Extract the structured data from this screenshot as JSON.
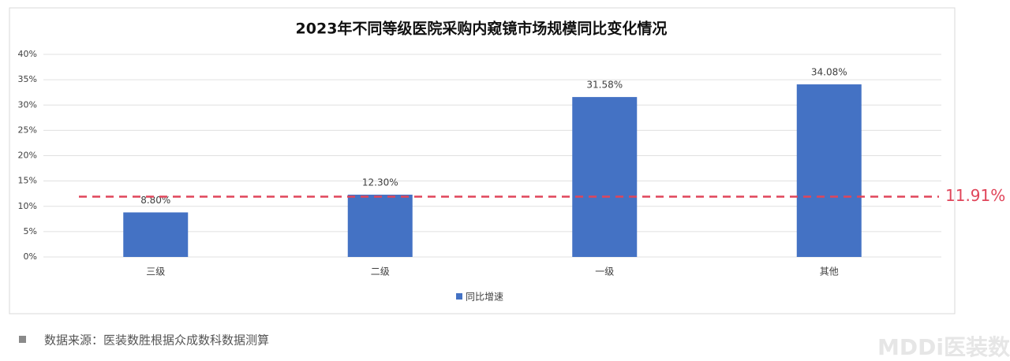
{
  "chart_data": {
    "type": "bar",
    "title": "2023年不同等级医院采购内窥镜市场规模同比变化情况",
    "categories": [
      "三级",
      "二级",
      "一级",
      "其他"
    ],
    "series": [
      {
        "name": "同比增速",
        "color": "#4472c4",
        "values": [
          8.8,
          12.3,
          31.58,
          34.08
        ],
        "value_labels": [
          "8.80%",
          "12.30%",
          "31.58%",
          "34.08%"
        ]
      }
    ],
    "ylim": [
      0,
      40
    ],
    "yticks": [
      {
        "value": 0,
        "label": "0%"
      },
      {
        "value": 5,
        "label": "5%"
      },
      {
        "value": 10,
        "label": "10%"
      },
      {
        "value": 15,
        "label": "15%"
      },
      {
        "value": 20,
        "label": "20%"
      },
      {
        "value": 25,
        "label": "25%"
      },
      {
        "value": 30,
        "label": "30%"
      },
      {
        "value": 35,
        "label": "35%"
      },
      {
        "value": 40,
        "label": "40%"
      }
    ],
    "grid": true,
    "legend": "bottom",
    "reference_line": {
      "value": 11.91,
      "label": "11.91%",
      "color": "#e0455a"
    }
  },
  "source": "数据来源：医装数胜根据众成数科数据测算",
  "watermark": "MDDi医装数"
}
